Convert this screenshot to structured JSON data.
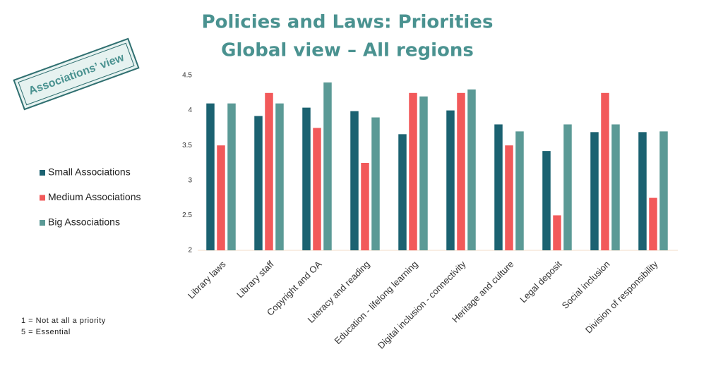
{
  "chart_data": {
    "type": "bar",
    "title": "Policies and Laws: Priorities",
    "subtitle": "Global view – All regions",
    "badge": "Associations’ view",
    "notes": [
      "1 = Not at all a priority",
      "5 = Essential"
    ],
    "categories": [
      "Library laws",
      "Library staff",
      "Copyright and OA",
      "Literacy and reading",
      "Education - lifelong learning",
      "Digital inclusion - connectivity",
      "Heritage and culture",
      "Legal deposit",
      "Social inclusion",
      "Division of responsibility"
    ],
    "series": [
      {
        "name": "Small Associations",
        "color": "#1b6271",
        "values": [
          4.1,
          3.92,
          4.04,
          3.99,
          3.66,
          4.0,
          3.8,
          3.42,
          3.69,
          3.69
        ]
      },
      {
        "name": "Medium Associations",
        "color": "#f2595a",
        "values": [
          3.5,
          4.25,
          3.75,
          3.25,
          4.25,
          4.25,
          3.5,
          2.5,
          4.25,
          2.75
        ]
      },
      {
        "name": "Big Associations",
        "color": "#5b9a96",
        "values": [
          4.1,
          4.1,
          4.4,
          3.9,
          4.2,
          4.3,
          3.7,
          3.8,
          3.8,
          3.7
        ]
      }
    ],
    "ylim": [
      2,
      4.5
    ],
    "yticks": [
      2,
      2.5,
      3,
      3.5,
      4,
      4.5
    ],
    "grid": false
  }
}
